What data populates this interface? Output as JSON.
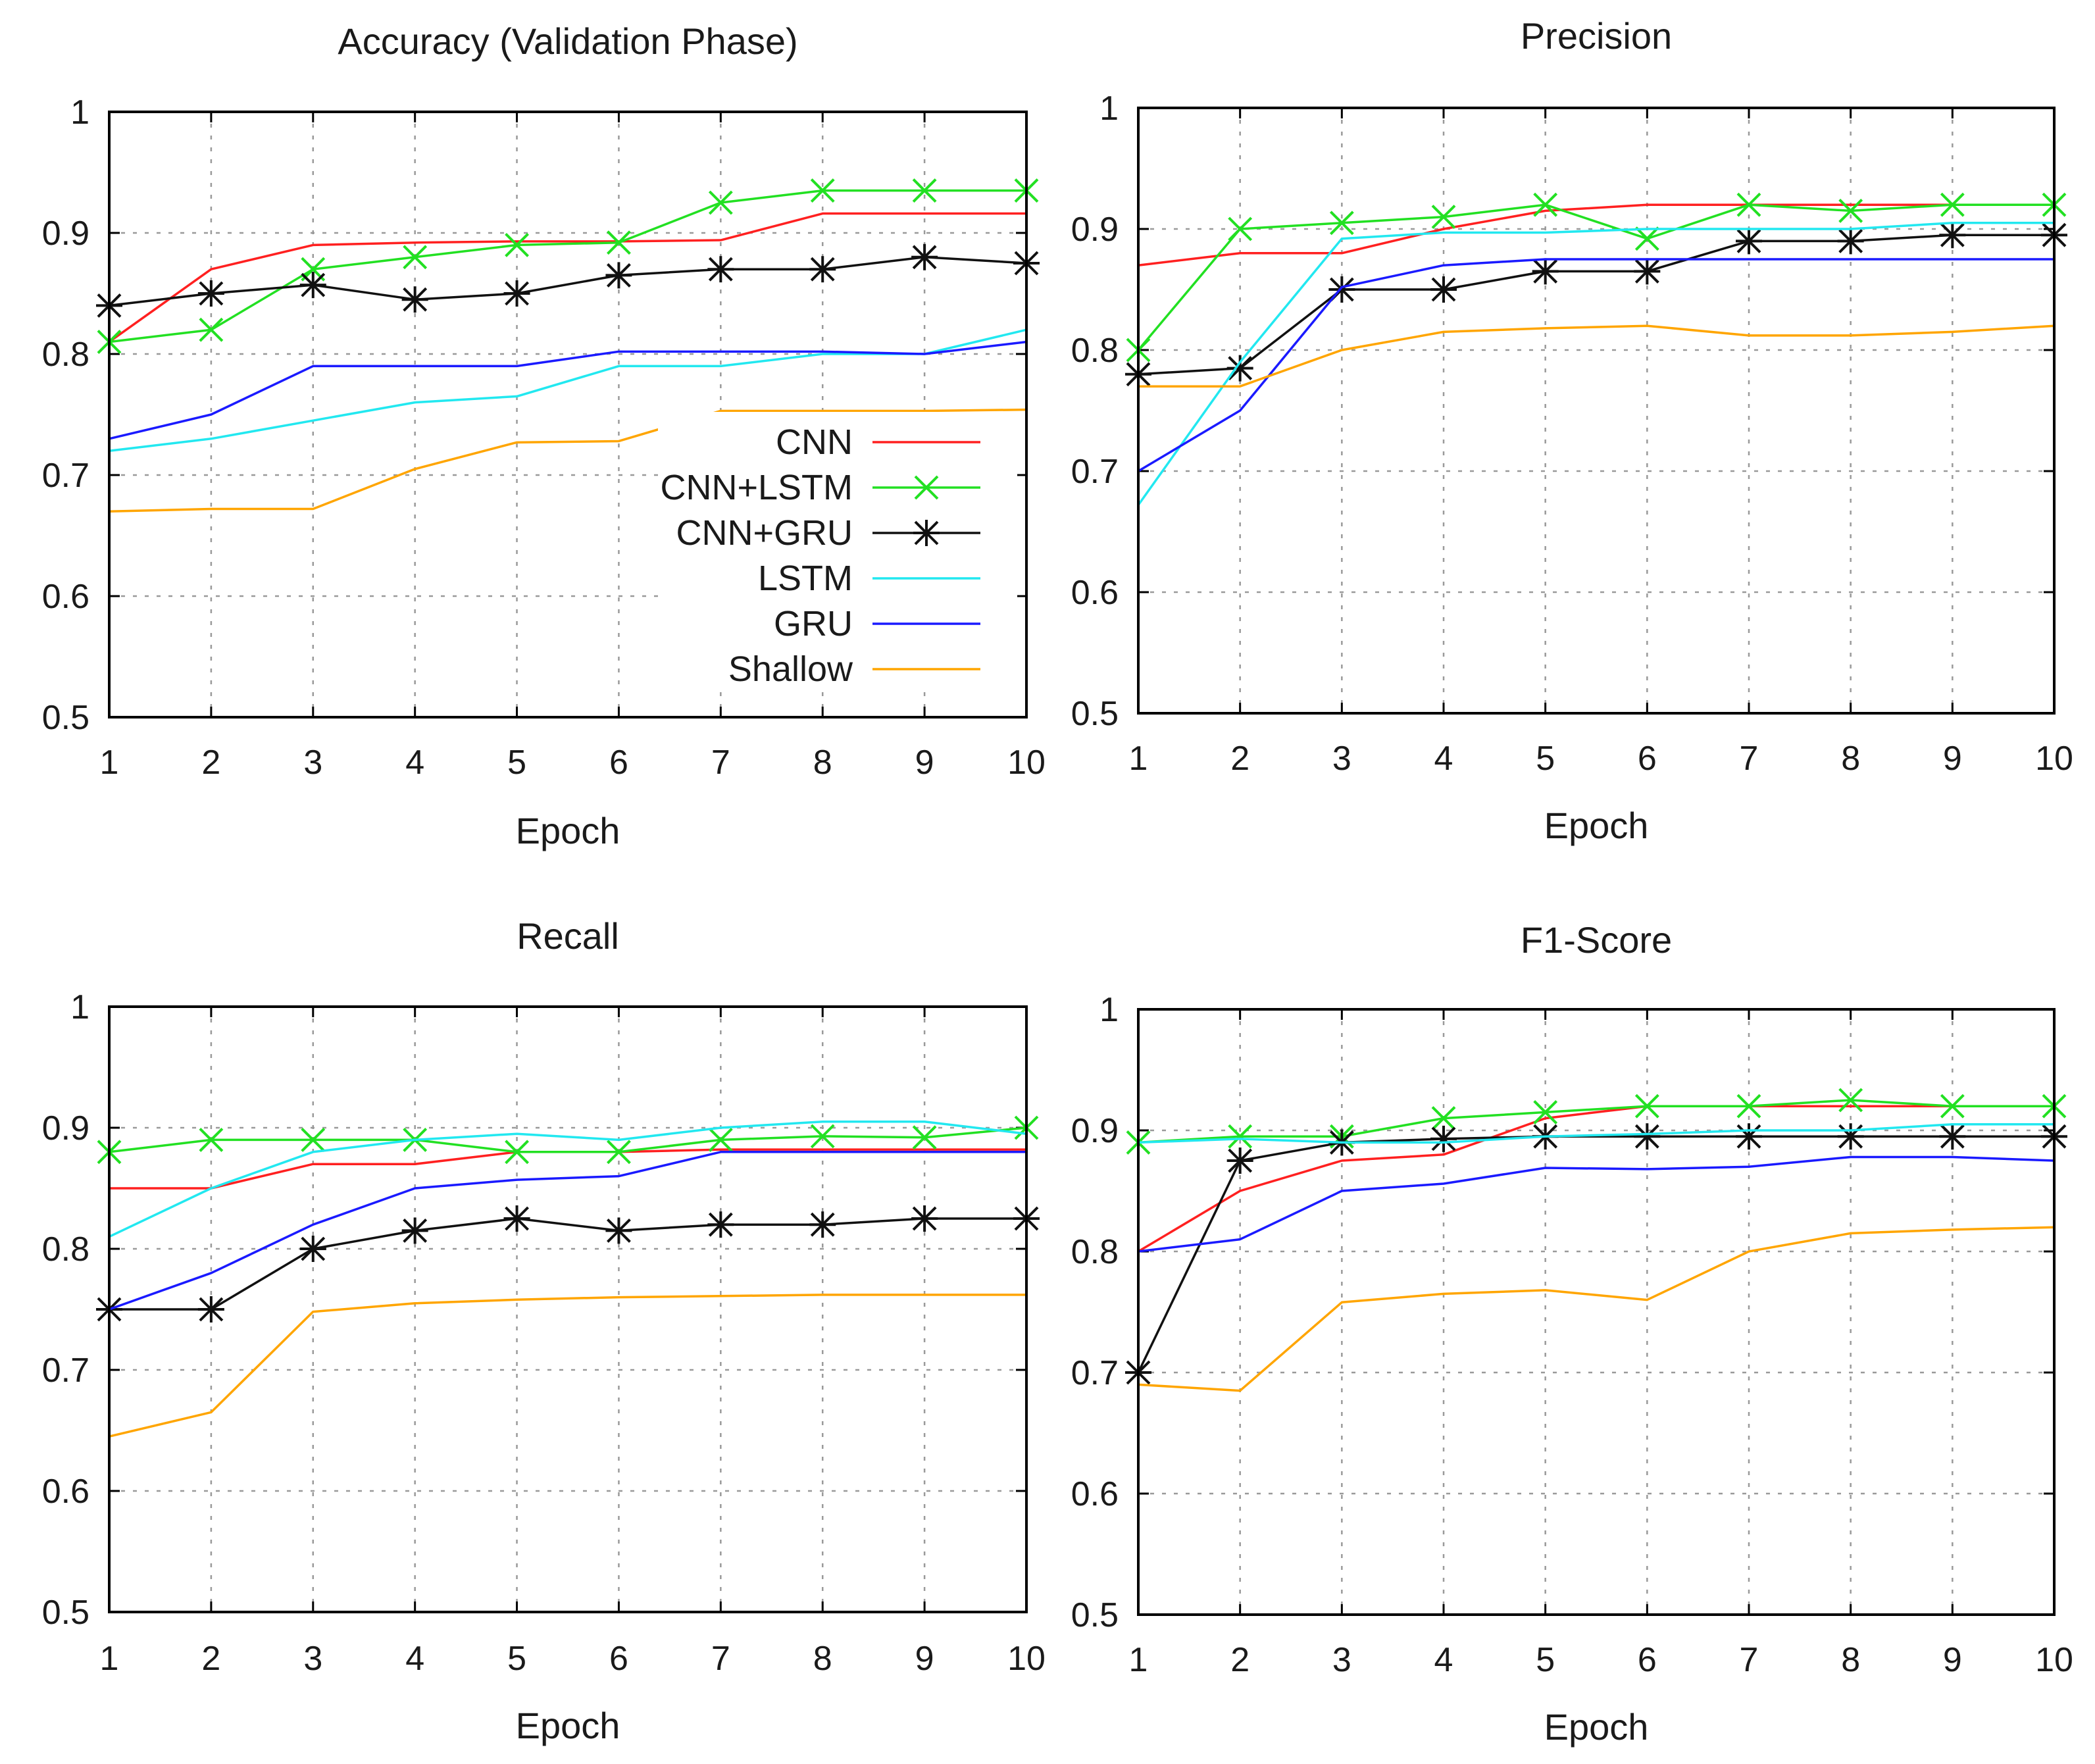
{
  "colors": {
    "CNN": "#ff2020",
    "CNN+LSTM": "#22e022",
    "CNN+GRU": "#111111",
    "LSTM": "#22e8f0",
    "GRU": "#1a1aff",
    "Shallow": "#ffa500",
    "grid": "#9a9a9a",
    "frame": "#000000"
  },
  "legend": [
    {
      "name": "CNN",
      "marker": "none"
    },
    {
      "name": "CNN+LSTM",
      "marker": "x"
    },
    {
      "name": "CNN+GRU",
      "marker": "star"
    },
    {
      "name": "LSTM",
      "marker": "none"
    },
    {
      "name": "GRU",
      "marker": "none"
    },
    {
      "name": "Shallow",
      "marker": "none"
    }
  ],
  "chart_data": [
    {
      "type": "line",
      "title": "Accuracy (Validation Phase)",
      "xlabel": "Epoch",
      "ylabel": "",
      "x": [
        1,
        2,
        3,
        4,
        5,
        6,
        7,
        8,
        9,
        10
      ],
      "xticks": [
        "1",
        "2",
        "3",
        "4",
        "5",
        "6",
        "7",
        "8",
        "9",
        "10"
      ],
      "ylim": [
        0.5,
        1
      ],
      "yticks": [
        "0.5",
        "0.6",
        "0.7",
        "0.8",
        "0.9",
        "1"
      ],
      "grid": true,
      "legend_position": "center-right",
      "series": [
        {
          "name": "CNN",
          "values": [
            0.81,
            0.87,
            0.89,
            0.892,
            0.893,
            0.893,
            0.894,
            0.916,
            0.916,
            0.916
          ]
        },
        {
          "name": "CNN+LSTM",
          "values": [
            0.81,
            0.82,
            0.87,
            0.88,
            0.89,
            0.892,
            0.925,
            0.935,
            0.935,
            0.935
          ]
        },
        {
          "name": "CNN+GRU",
          "values": [
            0.84,
            0.85,
            0.857,
            0.845,
            0.85,
            0.865,
            0.87,
            0.87,
            0.88,
            0.875
          ]
        },
        {
          "name": "LSTM",
          "values": [
            0.72,
            0.73,
            0.745,
            0.76,
            0.765,
            0.79,
            0.79,
            0.8,
            0.8,
            0.82
          ]
        },
        {
          "name": "GRU",
          "values": [
            0.73,
            0.75,
            0.79,
            0.79,
            0.79,
            0.802,
            0.802,
            0.802,
            0.8,
            0.81
          ]
        },
        {
          "name": "Shallow",
          "values": [
            0.67,
            0.672,
            0.672,
            0.705,
            0.727,
            0.728,
            0.753,
            0.753,
            0.753,
            0.754
          ]
        }
      ]
    },
    {
      "type": "line",
      "title": "Precision",
      "xlabel": "Epoch",
      "ylabel": "",
      "x": [
        1,
        2,
        3,
        4,
        5,
        6,
        7,
        8,
        9,
        10
      ],
      "xticks": [
        "1",
        "2",
        "3",
        "4",
        "5",
        "6",
        "7",
        "8",
        "9",
        "10"
      ],
      "ylim": [
        0.5,
        1
      ],
      "yticks": [
        "0.5",
        "0.6",
        "0.7",
        "0.8",
        "0.9",
        "1"
      ],
      "grid": true,
      "series": [
        {
          "name": "CNN",
          "values": [
            0.87,
            0.88,
            0.88,
            0.9,
            0.915,
            0.92,
            0.92,
            0.92,
            0.92,
            0.92
          ]
        },
        {
          "name": "CNN+LSTM",
          "values": [
            0.8,
            0.9,
            0.905,
            0.91,
            0.92,
            0.892,
            0.92,
            0.915,
            0.92,
            0.92
          ]
        },
        {
          "name": "CNN+GRU",
          "values": [
            0.78,
            0.785,
            0.85,
            0.85,
            0.865,
            0.865,
            0.89,
            0.89,
            0.895,
            0.895
          ]
        },
        {
          "name": "LSTM",
          "values": [
            0.672,
            0.79,
            0.892,
            0.897,
            0.897,
            0.9,
            0.9,
            0.9,
            0.905,
            0.905
          ]
        },
        {
          "name": "GRU",
          "values": [
            0.7,
            0.75,
            0.852,
            0.87,
            0.875,
            0.875,
            0.875,
            0.875,
            0.875,
            0.875
          ]
        },
        {
          "name": "Shallow",
          "values": [
            0.77,
            0.77,
            0.8,
            0.815,
            0.818,
            0.82,
            0.812,
            0.812,
            0.815,
            0.82
          ]
        }
      ]
    },
    {
      "type": "line",
      "title": "Recall",
      "xlabel": "Epoch",
      "ylabel": "",
      "x": [
        1,
        2,
        3,
        4,
        5,
        6,
        7,
        8,
        9,
        10
      ],
      "xticks": [
        "1",
        "2",
        "3",
        "4",
        "5",
        "6",
        "7",
        "8",
        "9",
        "10"
      ],
      "ylim": [
        0.5,
        1
      ],
      "yticks": [
        "0.5",
        "0.6",
        "0.7",
        "0.8",
        "0.9",
        "1"
      ],
      "grid": true,
      "series": [
        {
          "name": "CNN",
          "values": [
            0.85,
            0.85,
            0.87,
            0.87,
            0.88,
            0.88,
            0.882,
            0.882,
            0.882,
            0.882
          ]
        },
        {
          "name": "CNN+LSTM",
          "values": [
            0.88,
            0.89,
            0.89,
            0.89,
            0.88,
            0.88,
            0.89,
            0.893,
            0.892,
            0.9
          ]
        },
        {
          "name": "CNN+GRU",
          "values": [
            0.75,
            0.75,
            0.8,
            0.815,
            0.825,
            0.815,
            0.82,
            0.82,
            0.825,
            0.825
          ]
        },
        {
          "name": "LSTM",
          "values": [
            0.81,
            0.85,
            0.88,
            0.89,
            0.895,
            0.89,
            0.9,
            0.905,
            0.905,
            0.895
          ]
        },
        {
          "name": "GRU",
          "values": [
            0.75,
            0.78,
            0.82,
            0.85,
            0.857,
            0.86,
            0.88,
            0.88,
            0.88,
            0.88
          ]
        },
        {
          "name": "Shallow",
          "values": [
            0.645,
            0.665,
            0.748,
            0.755,
            0.758,
            0.76,
            0.761,
            0.762,
            0.762,
            0.762
          ]
        }
      ]
    },
    {
      "type": "line",
      "title": "F1-Score",
      "xlabel": "Epoch",
      "ylabel": "",
      "x": [
        1,
        2,
        3,
        4,
        5,
        6,
        7,
        8,
        9,
        10
      ],
      "xticks": [
        "1",
        "2",
        "3",
        "4",
        "5",
        "6",
        "7",
        "8",
        "9",
        "10"
      ],
      "ylim": [
        0.5,
        1
      ],
      "yticks": [
        "0.5",
        "0.6",
        "0.7",
        "0.8",
        "0.9",
        "1"
      ],
      "grid": true,
      "series": [
        {
          "name": "CNN",
          "values": [
            0.8,
            0.85,
            0.875,
            0.88,
            0.91,
            0.92,
            0.92,
            0.92,
            0.92,
            0.92
          ]
        },
        {
          "name": "CNN+LSTM",
          "values": [
            0.89,
            0.895,
            0.895,
            0.91,
            0.915,
            0.92,
            0.92,
            0.925,
            0.92,
            0.92
          ]
        },
        {
          "name": "CNN+GRU",
          "values": [
            0.7,
            0.875,
            0.89,
            0.893,
            0.895,
            0.895,
            0.895,
            0.895,
            0.895,
            0.895
          ]
        },
        {
          "name": "LSTM",
          "values": [
            0.89,
            0.893,
            0.89,
            0.89,
            0.895,
            0.897,
            0.9,
            0.9,
            0.905,
            0.905
          ]
        },
        {
          "name": "GRU",
          "values": [
            0.8,
            0.81,
            0.85,
            0.856,
            0.869,
            0.868,
            0.87,
            0.878,
            0.878,
            0.875
          ]
        },
        {
          "name": "Shallow",
          "values": [
            0.69,
            0.685,
            0.758,
            0.765,
            0.768,
            0.76,
            0.8,
            0.815,
            0.818,
            0.82
          ]
        }
      ]
    }
  ]
}
